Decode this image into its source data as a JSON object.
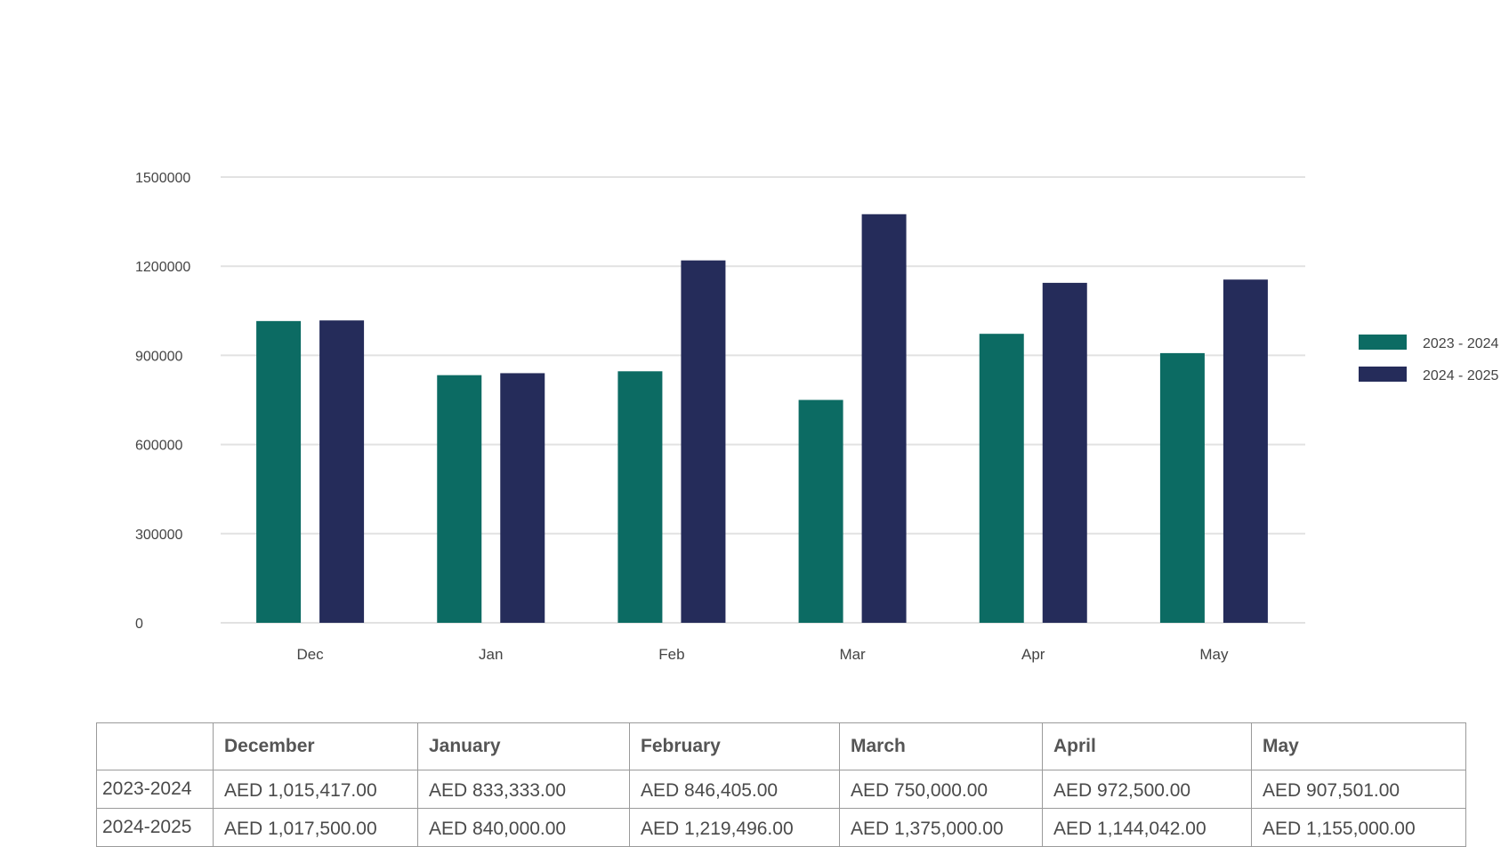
{
  "chart_data": {
    "type": "bar",
    "categories": [
      "Dec",
      "Jan",
      "Feb",
      "Mar",
      "Apr",
      "May"
    ],
    "series": [
      {
        "name": "2023 - 2024",
        "color": "#0c6b63",
        "values": [
          1015417,
          833333,
          846405,
          750000,
          972500,
          907501
        ]
      },
      {
        "name": "2024 - 2025",
        "color": "#252c5a",
        "values": [
          1017500,
          840000,
          1219496,
          1375000,
          1144042,
          1155000
        ]
      }
    ],
    "yticks": [
      "0",
      "300000",
      "600000",
      "900000",
      "1200000",
      "1500000"
    ],
    "ylim": [
      0,
      1500000
    ],
    "grid": true,
    "legend": "right",
    "title": "",
    "xlabel": "",
    "ylabel": ""
  },
  "table": {
    "headers": [
      "",
      "December",
      "January",
      "February",
      "March",
      "April",
      "May"
    ],
    "rows": [
      {
        "label": "2023-2024",
        "cells": [
          "AED 1,015,417.00",
          "AED 833,333.00",
          "AED 846,405.00",
          "AED 750,000.00",
          "AED 972,500.00",
          "AED 907,501.00"
        ]
      },
      {
        "label": "2024-2025",
        "cells": [
          "AED 1,017,500.00",
          "AED 840,000.00",
          "AED 1,219,496.00",
          "AED 1,375,000.00",
          "AED 1,144,042.00",
          "AED 1,155,000.00"
        ]
      }
    ]
  }
}
